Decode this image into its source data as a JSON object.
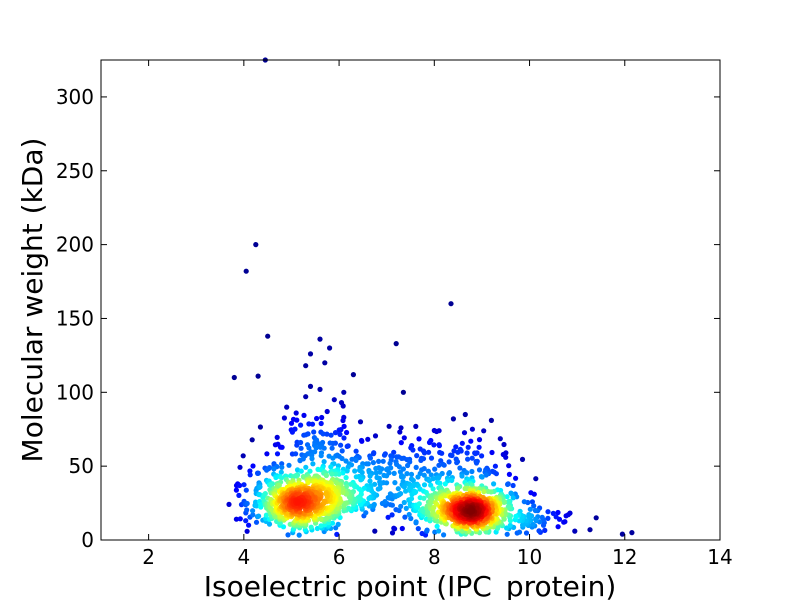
{
  "chart_data": {
    "type": "scatter",
    "title": "",
    "xlabel": "Isoelectric point (IPC_protein)",
    "ylabel": "Molecular weight (kDa)",
    "xlim": [
      1,
      14
    ],
    "ylim": [
      0,
      325
    ],
    "xticks": [
      2,
      4,
      6,
      8,
      10,
      12,
      14
    ],
    "yticks": [
      0,
      50,
      100,
      150,
      200,
      250,
      300
    ],
    "xtick_labels": [
      "2",
      "4",
      "6",
      "8",
      "10",
      "12",
      "14"
    ],
    "ytick_labels": [
      "0",
      "50",
      "100",
      "150",
      "200",
      "250",
      "300"
    ],
    "grid": false,
    "colormap": "jet",
    "color_encoding": "point density",
    "marker_color_range": [
      "#00007f",
      "#0000ff",
      "#00ffff",
      "#ffff00",
      "#ff0000",
      "#7f0000"
    ],
    "sparse_points": [
      {
        "x": 4.45,
        "y": 325
      },
      {
        "x": 4.25,
        "y": 200
      },
      {
        "x": 4.05,
        "y": 182
      },
      {
        "x": 8.35,
        "y": 160
      },
      {
        "x": 4.5,
        "y": 138
      },
      {
        "x": 5.6,
        "y": 136
      },
      {
        "x": 7.2,
        "y": 133
      },
      {
        "x": 5.8,
        "y": 130
      },
      {
        "x": 5.4,
        "y": 126
      },
      {
        "x": 5.7,
        "y": 120
      },
      {
        "x": 5.3,
        "y": 118
      },
      {
        "x": 6.3,
        "y": 112
      },
      {
        "x": 4.3,
        "y": 111
      },
      {
        "x": 3.8,
        "y": 110
      },
      {
        "x": 5.4,
        "y": 104
      },
      {
        "x": 5.6,
        "y": 102
      },
      {
        "x": 7.35,
        "y": 100
      },
      {
        "x": 6.1,
        "y": 100
      },
      {
        "x": 5.3,
        "y": 97
      },
      {
        "x": 5.9,
        "y": 95
      },
      {
        "x": 6.05,
        "y": 93
      },
      {
        "x": 4.9,
        "y": 90
      },
      {
        "x": 5.75,
        "y": 87
      },
      {
        "x": 5.1,
        "y": 86
      },
      {
        "x": 8.65,
        "y": 85
      },
      {
        "x": 6.1,
        "y": 83
      },
      {
        "x": 9.2,
        "y": 81
      },
      {
        "x": 8.4,
        "y": 82
      },
      {
        "x": 6.45,
        "y": 80
      },
      {
        "x": 5.0,
        "y": 79
      },
      {
        "x": 7.05,
        "y": 77
      },
      {
        "x": 7.3,
        "y": 76
      },
      {
        "x": 8.8,
        "y": 75
      },
      {
        "x": 8.1,
        "y": 74
      },
      {
        "x": 8.95,
        "y": 68
      },
      {
        "x": 7.9,
        "y": 66
      },
      {
        "x": 9.5,
        "y": 56
      },
      {
        "x": 10.1,
        "y": 31
      },
      {
        "x": 11.4,
        "y": 15
      },
      {
        "x": 11.95,
        "y": 4
      },
      {
        "x": 12.15,
        "y": 5
      },
      {
        "x": 10.95,
        "y": 6
      },
      {
        "x": 10.6,
        "y": 9
      },
      {
        "x": 10.5,
        "y": 18
      },
      {
        "x": 3.95,
        "y": 24
      },
      {
        "x": 4.1,
        "y": 10
      },
      {
        "x": 6.75,
        "y": 6
      },
      {
        "x": 7.15,
        "y": 8
      }
    ],
    "clusters": [
      {
        "center_x": 5.2,
        "center_y": 22,
        "sd_x": 0.55,
        "sd_y": 13,
        "n": 650
      },
      {
        "center_x": 8.75,
        "center_y": 17,
        "sd_x": 0.55,
        "sd_y": 11,
        "n": 650
      },
      {
        "center_x": 7.3,
        "center_y": 35,
        "sd_x": 0.6,
        "sd_y": 14,
        "n": 160
      },
      {
        "center_x": 6.2,
        "center_y": 30,
        "sd_x": 0.5,
        "sd_y": 15,
        "n": 120
      },
      {
        "center_x": 5.4,
        "center_y": 60,
        "sd_x": 0.45,
        "sd_y": 12,
        "n": 90
      },
      {
        "center_x": 8.4,
        "center_y": 52,
        "sd_x": 0.55,
        "sd_y": 12,
        "n": 80
      },
      {
        "center_x": 10.1,
        "center_y": 10,
        "sd_x": 0.45,
        "sd_y": 6,
        "n": 50
      }
    ]
  }
}
